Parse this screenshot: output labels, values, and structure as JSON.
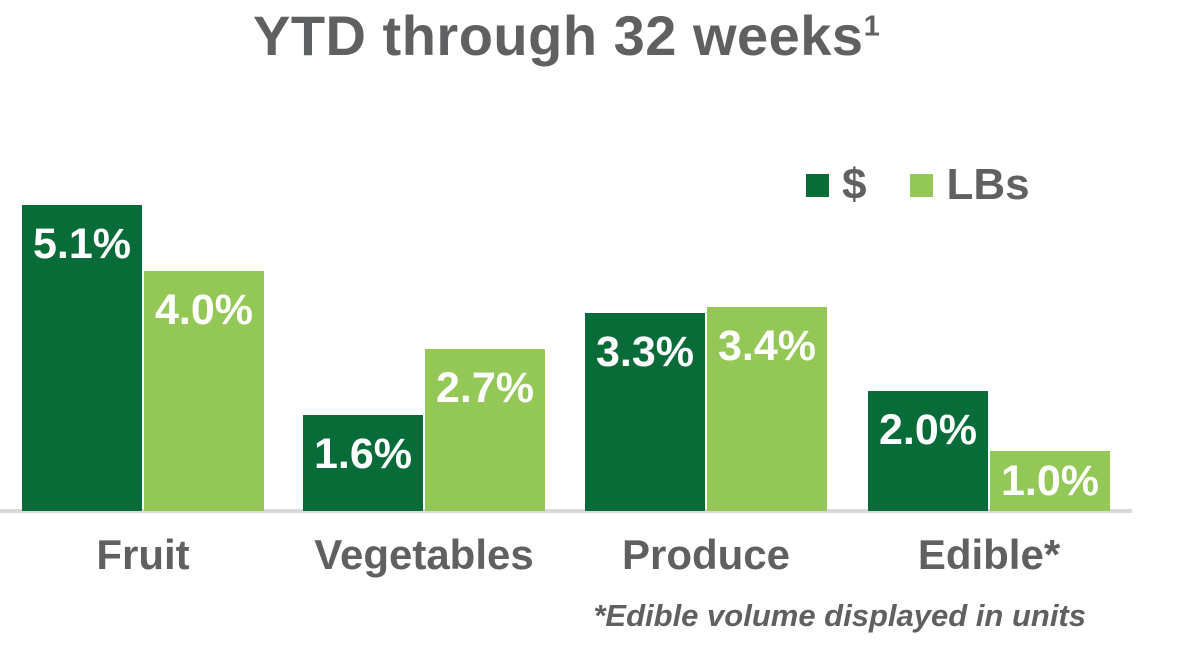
{
  "title": {
    "text": "YTD through 32 weeks",
    "superscript": "1"
  },
  "legend": [
    {
      "label": "$",
      "color": "#086C38"
    },
    {
      "label": "LBs",
      "color": "#93C857"
    }
  ],
  "footnote": "*Edible volume displayed in units",
  "colors": {
    "dollars_green": "#086C38",
    "lbs_green": "#93C857",
    "text_gray": "#5F6062",
    "axis_line_gray": "#D9D9D9",
    "value_label_white": "#FFFFFF",
    "background": "#FFFFFF"
  },
  "chart_data": {
    "type": "bar",
    "title": "YTD through 32 weeks¹",
    "categories": [
      "Fruit",
      "Vegetables",
      "Produce",
      "Edible*"
    ],
    "series": [
      {
        "name": "$",
        "color": "#086C38",
        "values": [
          5.1,
          1.6,
          3.3,
          2.0
        ],
        "value_labels": [
          "5.1%",
          "1.6%",
          "3.3%",
          "2.0%"
        ]
      },
      {
        "name": "LBs",
        "color": "#93C857",
        "values": [
          4.0,
          2.7,
          3.4,
          1.0
        ],
        "value_labels": [
          "4.0%",
          "2.7%",
          "3.4%",
          "1.0%"
        ]
      }
    ],
    "ylabel": "",
    "xlabel": "",
    "unit": "%",
    "ylim": [
      0,
      5.5
    ],
    "grid": false,
    "y_axis_visible": false,
    "legend_position": "top-right",
    "value_labels_inside_bars": true,
    "footnote": "*Edible volume displayed in units"
  }
}
